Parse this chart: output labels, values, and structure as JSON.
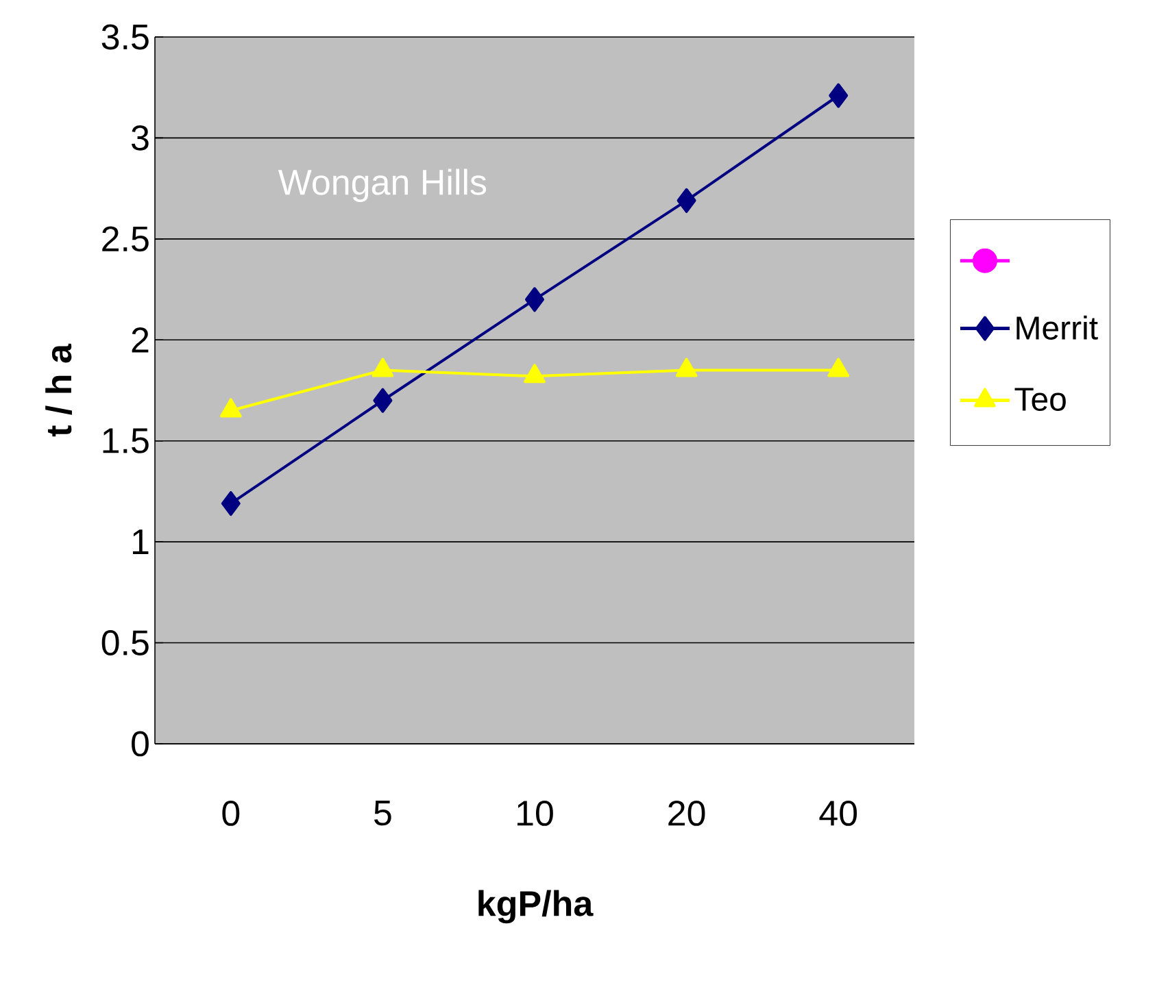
{
  "chart_data": {
    "type": "line",
    "xlabel": "kgP/ha",
    "ylabel": "t / h a",
    "categories": [
      "0",
      "5",
      "10",
      "20",
      "40"
    ],
    "series": [
      {
        "color": "#ff00ff",
        "marker": "circle",
        "values": [
          null,
          null,
          null,
          null,
          null
        ]
      },
      {
        "name": "Merrit",
        "color": "#000080",
        "marker": "diamond",
        "values": [
          1.19,
          1.7,
          2.2,
          2.69,
          3.21
        ]
      },
      {
        "name": "Teo",
        "color": "#ffff00",
        "marker": "triangle",
        "values": [
          1.65,
          1.85,
          1.82,
          1.85,
          1.85
        ]
      }
    ],
    "ylim": [
      0,
      3.5
    ],
    "yticks": [
      0,
      0.5,
      1,
      1.5,
      2,
      2.5,
      3,
      3.5
    ],
    "grid": "y",
    "legend": "right",
    "annotations": [
      "Wongan Hills"
    ]
  }
}
